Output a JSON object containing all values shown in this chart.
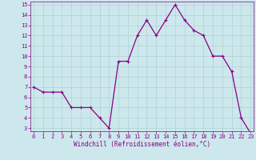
{
  "x": [
    0,
    1,
    2,
    3,
    4,
    5,
    6,
    7,
    8,
    9,
    10,
    11,
    12,
    13,
    14,
    15,
    16,
    17,
    18,
    19,
    20,
    21,
    22,
    23
  ],
  "y": [
    7,
    6.5,
    6.5,
    6.5,
    5,
    5,
    5,
    4,
    3,
    9.5,
    9.5,
    12,
    13.5,
    12,
    13.5,
    15,
    13.5,
    12.5,
    12,
    10,
    10,
    8.5,
    4,
    2.5
  ],
  "line_color": "#880088",
  "marker": "+",
  "marker_size": 3,
  "marker_lw": 0.8,
  "line_width": 0.9,
  "bg_color": "#cce8ec",
  "grid_color": "#aacccc",
  "xlabel": "Windchill (Refroidissement éolien,°C)",
  "tick_color": "#880088",
  "ylim_min": 3,
  "ylim_max": 15,
  "xlim_min": 0,
  "xlim_max": 23,
  "yticks": [
    3,
    4,
    5,
    6,
    7,
    8,
    9,
    10,
    11,
    12,
    13,
    14,
    15
  ],
  "xticks": [
    0,
    1,
    2,
    3,
    4,
    5,
    6,
    7,
    8,
    9,
    10,
    11,
    12,
    13,
    14,
    15,
    16,
    17,
    18,
    19,
    20,
    21,
    22,
    23
  ],
  "tick_fontsize": 5.0,
  "xlabel_fontsize": 5.5
}
